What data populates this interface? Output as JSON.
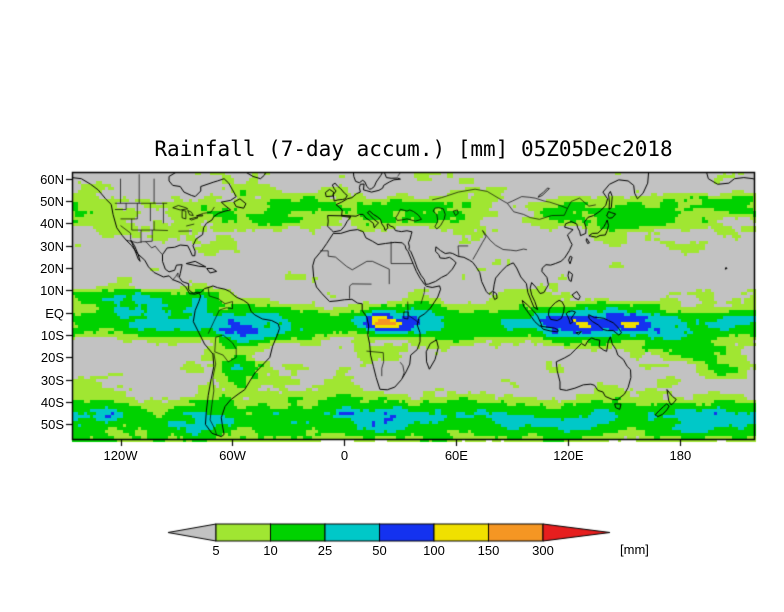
{
  "title": "Rainfall (7-day accum.) [mm] 05Z05Dec2018",
  "chart_data": {
    "type": "heatmap",
    "title": "Rainfall (7-day accum.) [mm] 05Z05Dec2018",
    "variable": "Rainfall, 7-day accumulation",
    "units": "mm",
    "valid_time_label": "05Z05Dec2018",
    "projection": "global equirectangular latitude-longitude map with coastlines and political borders",
    "lat_axis": {
      "tick_labels": [
        "60N",
        "50N",
        "40N",
        "30N",
        "20N",
        "10N",
        "EQ",
        "10S",
        "20S",
        "30S",
        "40S",
        "50S"
      ],
      "tick_values": [
        60,
        50,
        40,
        30,
        20,
        10,
        0,
        -10,
        -20,
        -30,
        -40,
        -50
      ],
      "range_deg": [
        63,
        -57
      ]
    },
    "lon_axis": {
      "tick_labels": [
        "120W",
        "60W",
        "0",
        "60E",
        "120E",
        "180"
      ],
      "tick_values": [
        -120,
        -60,
        0,
        60,
        120,
        180
      ],
      "range_deg": [
        -146,
        220
      ]
    },
    "color_levels_mm": [
      5,
      10,
      25,
      50,
      100,
      150,
      300
    ],
    "palette": {
      "below_5mm_no_rain": "#c2c2c2",
      "bins_5_10_25_50_100_150": [
        "#a0e632",
        "#00d200",
        "#00c8c8",
        "#1432f0",
        "#f0e000",
        "#f59623"
      ],
      "above_300mm": "#e61e1e"
    },
    "legend_position": "bottom-center horizontal colorbar with pointed end arrows",
    "grid": false,
    "description": "Blocky filled raster of 7-day accumulated rainfall over a gray world map. Heavy rain (cyan/blue/yellow/orange/red) along the ITCZ, SPCZ, Maritime Continent, tropical South America and the midlatitude storm tracks; gray means below 5 mm."
  },
  "axes": {
    "y_tick_labels": [
      "60N",
      "50N",
      "40N",
      "30N",
      "20N",
      "10N",
      "EQ",
      "10S",
      "20S",
      "30S",
      "40S",
      "50S"
    ],
    "x_tick_labels": [
      "120W",
      "60W",
      "0",
      "60E",
      "120E",
      "180"
    ]
  },
  "legend": {
    "tick_labels": [
      "5",
      "10",
      "25",
      "50",
      "100",
      "150",
      "300"
    ],
    "unit_label": "[mm]"
  },
  "colors": {
    "background": "#ffffff",
    "map_base_gray": "#c2c2c2",
    "coastline": "#000000",
    "frame": "#000000",
    "rain_bins": [
      "#a0e632",
      "#00d200",
      "#00c8c8",
      "#1432f0",
      "#f0e000",
      "#f59623"
    ],
    "above_max": "#e61e1e",
    "below_min_arrow": "#c2c2c2"
  }
}
